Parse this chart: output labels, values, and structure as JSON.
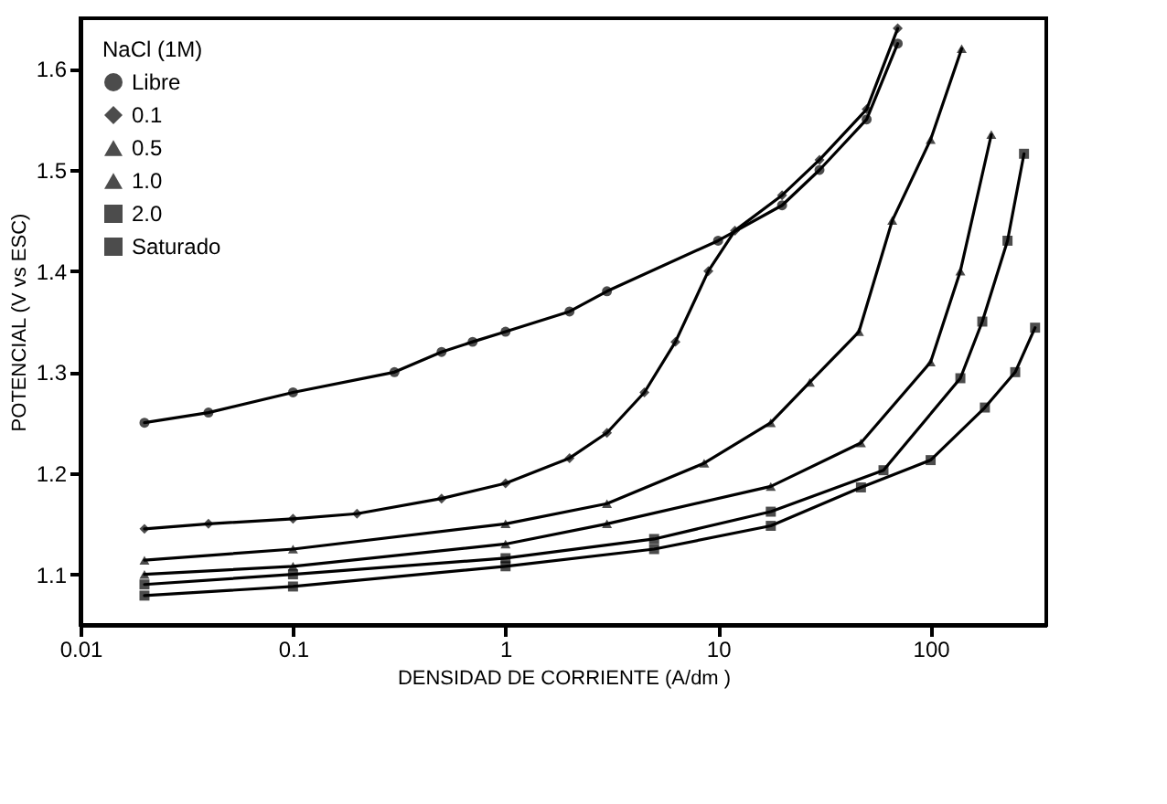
{
  "chart_data": {
    "type": "line",
    "xlabel": "DENSIDAD DE CORRIENTE (A/dm )",
    "ylabel": "POTENCIAL (V vs ESC)",
    "legend_title": "NaCl (1M)",
    "legend": "top left",
    "log": "x",
    "grid": false,
    "line_style": "solid",
    "xlim": [
      0.01,
      350
    ],
    "xticks": [
      0.01,
      0.1,
      1,
      10,
      100
    ],
    "ylim": [
      1.05,
      1.65
    ],
    "yticks": [
      1.1,
      1.2,
      1.3,
      1.4,
      1.5,
      1.6
    ],
    "series": [
      {
        "name": "Libre",
        "color": "#000000",
        "marker": "circle",
        "x": [
          0.02,
          0.04,
          0.1,
          0.3,
          0.5,
          0.7,
          1,
          2,
          3,
          10,
          20,
          30,
          50,
          70
        ],
        "values": [
          1.25,
          1.26,
          1.28,
          1.3,
          1.32,
          1.33,
          1.34,
          1.36,
          1.38,
          1.43,
          1.465,
          1.5,
          1.55,
          1.625
        ]
      },
      {
        "name": "0.1",
        "color": "#000000",
        "marker": "diamond",
        "x": [
          0.02,
          0.04,
          0.1,
          0.2,
          0.5,
          1,
          2,
          3,
          4.5,
          6.3,
          9,
          12,
          20,
          30,
          50,
          70
        ],
        "values": [
          1.145,
          1.15,
          1.155,
          1.16,
          1.175,
          1.19,
          1.215,
          1.24,
          1.28,
          1.33,
          1.4,
          1.44,
          1.475,
          1.51,
          1.56,
          1.64
        ]
      },
      {
        "name": "0.5",
        "color": "#000000",
        "marker": "triangle",
        "x": [
          0.02,
          0.1,
          1,
          3,
          8.6,
          17.7,
          27,
          46,
          66,
          100,
          140
        ],
        "values": [
          1.114,
          1.125,
          1.15,
          1.17,
          1.21,
          1.25,
          1.29,
          1.34,
          1.45,
          1.53,
          1.62
        ]
      },
      {
        "name": "1.0",
        "color": "#000000",
        "marker": "triangle",
        "x": [
          0.02,
          0.1,
          1,
          3,
          17.7,
          47,
          100,
          138,
          193
        ],
        "values": [
          1.1,
          1.108,
          1.13,
          1.15,
          1.187,
          1.23,
          1.31,
          1.4,
          1.535
        ]
      },
      {
        "name": "2.0",
        "color": "#000000",
        "marker": "square",
        "x": [
          0.02,
          0.1,
          1,
          5,
          17.7,
          60,
          138,
          175,
          230,
          275
        ],
        "values": [
          1.09,
          1.1,
          1.116,
          1.135,
          1.162,
          1.203,
          1.294,
          1.35,
          1.43,
          1.516
        ]
      },
      {
        "name": "Saturado",
        "color": "#000000",
        "marker": "square",
        "x": [
          0.02,
          0.1,
          1,
          5,
          17.7,
          47,
          100,
          180,
          250,
          310
        ],
        "values": [
          1.079,
          1.088,
          1.108,
          1.125,
          1.148,
          1.186,
          1.213,
          1.265,
          1.3,
          1.344
        ]
      }
    ]
  }
}
